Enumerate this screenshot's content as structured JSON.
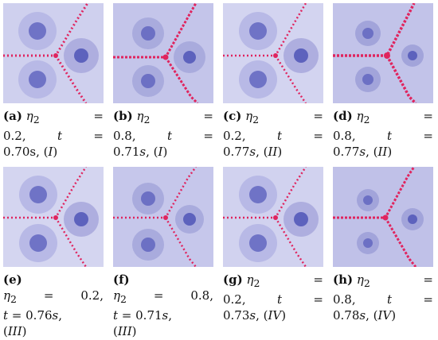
{
  "panels": [
    {
      "id": "a",
      "caption": [
        [
          "(a) η₂",
          "=",
          "",
          ""
        ],
        [
          "0.2,",
          "t",
          "="
        ],
        [
          "0.70s, (I)"
        ]
      ],
      "variant": 0.2
    },
    {
      "id": "b",
      "caption": [
        [
          "(b) η₂",
          "=",
          "",
          ""
        ],
        [
          "0.8,",
          "t",
          "="
        ],
        [
          "0.71s, (I)"
        ]
      ],
      "variant": 0.8
    },
    {
      "id": "c",
      "caption": [
        [
          "(c) η₂",
          "=",
          "",
          ""
        ],
        [
          "0.2,",
          "t",
          "="
        ],
        [
          "0.77s, (II)"
        ]
      ],
      "variant": 0.2
    },
    {
      "id": "d",
      "caption": [
        [
          "(d) η₂",
          "=",
          "",
          ""
        ],
        [
          "0.8,",
          "t",
          "="
        ],
        [
          "0.77s, (II)"
        ]
      ],
      "variant": 0.8
    },
    {
      "id": "e",
      "caption": [
        [
          "(e)"
        ],
        [
          "η₂",
          "=",
          "0.2,"
        ],
        [
          "t = 0.76s,"
        ],
        [
          "(III)"
        ]
      ],
      "variant": 0.2
    },
    {
      "id": "f",
      "caption": [
        [
          "(f)"
        ],
        [
          "η₂",
          "=",
          "0.8,"
        ],
        [
          "t = 0.71s,"
        ],
        [
          "(III)"
        ]
      ],
      "variant": 0.8
    },
    {
      "id": "g",
      "caption": [
        [
          "(g) η₂",
          "=",
          "",
          ""
        ],
        [
          "0.2,",
          "t",
          "="
        ],
        [
          "0.73s, (IV)"
        ]
      ],
      "variant": 0.2
    },
    {
      "id": "h",
      "caption": [
        [
          "(h) η₂",
          "=",
          "",
          ""
        ],
        [
          "0.8,",
          "t",
          "="
        ],
        [
          "0.78s, (IV)"
        ]
      ],
      "variant": 0.8
    }
  ],
  "colors": {
    "light": "#dcdcf2",
    "mid": "#aeaedf",
    "dark": "#6f73c6",
    "accent": "#e0245e"
  }
}
